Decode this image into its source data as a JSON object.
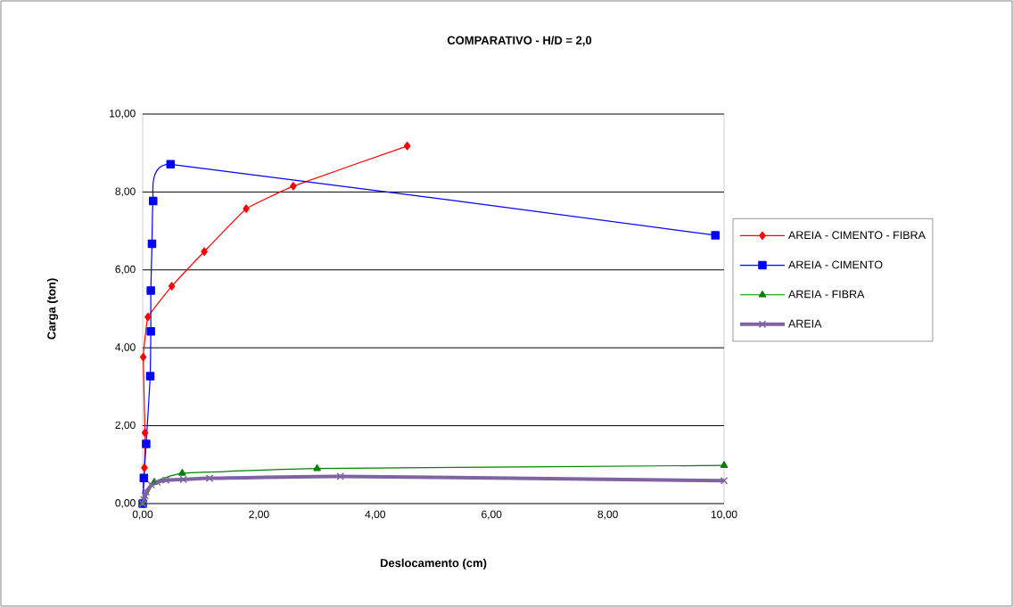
{
  "chart_data": {
    "type": "line",
    "title": "COMPARATIVO - H/D = 2,0",
    "xlabel": "Deslocamento (cm)",
    "ylabel": "Carga (ton)",
    "xlim": [
      0,
      10
    ],
    "ylim": [
      0,
      10
    ],
    "xticks": [
      {
        "value": 0,
        "label": "0,00"
      },
      {
        "value": 2,
        "label": "2,00"
      },
      {
        "value": 4,
        "label": "4,00"
      },
      {
        "value": 6,
        "label": "6,00"
      },
      {
        "value": 8,
        "label": "8,00"
      },
      {
        "value": 10,
        "label": "10,00"
      }
    ],
    "yticks": [
      {
        "value": 0,
        "label": "0,00"
      },
      {
        "value": 2,
        "label": "2,00"
      },
      {
        "value": 4,
        "label": "4,00"
      },
      {
        "value": 6,
        "label": "6,00"
      },
      {
        "value": 8,
        "label": "8,00"
      },
      {
        "value": 10,
        "label": "10,00"
      }
    ],
    "grid": "y",
    "legend": "right",
    "series": [
      {
        "name": "AREIA - CIMENTO - FIBRA",
        "color": "#ff0000",
        "marker": "diamond",
        "x": [
          0,
          0.03,
          0.04,
          0.01,
          0.09,
          0.5,
          1.06,
          1.78,
          2.59,
          4.55
        ],
        "values": [
          0,
          0.92,
          1.82,
          3.76,
          4.79,
          5.58,
          6.47,
          7.57,
          8.15,
          9.18
        ]
      },
      {
        "name": "AREIA - CIMENTO",
        "color": "#0000ff",
        "marker": "square",
        "x": [
          0,
          0.02,
          0.06,
          0.13,
          0.14,
          0.14,
          0.16,
          0.18,
          0.48,
          9.85
        ],
        "values": [
          0,
          0.66,
          1.53,
          3.27,
          4.42,
          5.47,
          6.67,
          7.77,
          8.71,
          6.89
        ]
      },
      {
        "name": "AREIA - FIBRA",
        "color": "#008000",
        "marker": "triangle",
        "x": [
          0,
          0.2,
          0.68,
          3.0,
          10
        ],
        "values": [
          0,
          0.55,
          0.78,
          0.9,
          0.98
        ]
      },
      {
        "name": "AREIA",
        "color": "#8064a2",
        "marker": "cross",
        "x": [
          0,
          0.02,
          0.04,
          0.06,
          0.15,
          0.25,
          0.4,
          0.7,
          1.15,
          3.4,
          10
        ],
        "values": [
          0,
          0.1,
          0.2,
          0.3,
          0.48,
          0.55,
          0.6,
          0.62,
          0.65,
          0.7,
          0.59
        ]
      }
    ]
  }
}
